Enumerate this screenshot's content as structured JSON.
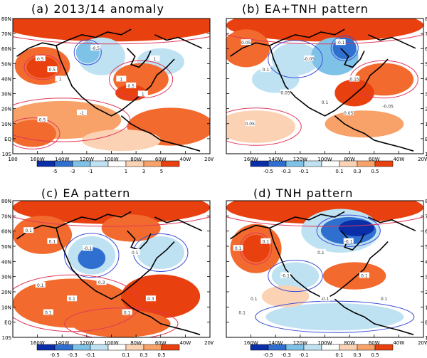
{
  "figure": {
    "panels": [
      {
        "title": "(a) 2013/14 anomaly",
        "lat_labels": [
          "80N",
          "70N",
          "60N",
          "50N",
          "40N",
          "30N",
          "20N",
          "10N",
          "EQ",
          "10S"
        ],
        "lon_labels": [
          "180",
          "160W",
          "140W",
          "120W",
          "100W",
          "80W",
          "60W",
          "40W",
          "20W"
        ],
        "colorbar_labels": [
          "-5",
          "-3",
          "-1",
          "1",
          "3",
          "5"
        ],
        "contour_labels": [
          "0.5",
          "0.5",
          "1",
          "1",
          "-0.5",
          "0.5",
          "1",
          "-1",
          "0.5",
          "1"
        ]
      },
      {
        "title": "(b) EA+TNH pattern",
        "lat_labels": [
          "80N",
          "70N",
          "60N",
          "50N",
          "40N",
          "30N",
          "20N",
          "10N",
          "EQ",
          "10S"
        ],
        "lon_labels": [
          "160W",
          "140W",
          "120W",
          "100W",
          "80W",
          "60W",
          "40W",
          "20W"
        ],
        "colorbar_labels": [
          "-0.5",
          "-0.3",
          "-0.1",
          "0.1",
          "0.3",
          "0.5"
        ],
        "contour_labels": [
          "0.05",
          "0.1",
          "0.15",
          "-0.05",
          "-0.1",
          "0.05",
          "0.05",
          "-0.05",
          "0.05",
          "0.1"
        ]
      },
      {
        "title": "(c) EA pattern",
        "lat_labels": [
          "80N",
          "70N",
          "60N",
          "50N",
          "40N",
          "30N",
          "20N",
          "10N",
          "EQ",
          "10S"
        ],
        "lon_labels": [
          "160W",
          "140W",
          "120W",
          "100W",
          "80W",
          "60W",
          "40W",
          "20W"
        ],
        "colorbar_labels": [
          "-0.5",
          "-0.3",
          "-0.1",
          "0.1",
          "0.3",
          "0.5"
        ],
        "contour_labels": [
          "0.1",
          "0.1",
          "-0.1",
          "0.1",
          "0.3",
          "0.1",
          "0.1",
          "0.3",
          "0.1",
          "0.1"
        ]
      },
      {
        "title": "(d) TNH pattern",
        "lat_labels": [
          "80N",
          "70N",
          "60N",
          "50N",
          "40N",
          "30N",
          "20N",
          "10N",
          "EQ",
          "10S"
        ],
        "lon_labels": [
          "160W",
          "140W",
          "120W",
          "100W",
          "80W",
          "60W",
          "40W",
          "20W"
        ],
        "colorbar_labels": [
          "-0.5",
          "-0.3",
          "-0.1",
          "0.1",
          "0.3",
          "0.5"
        ],
        "contour_labels": [
          "0.1",
          "0.1",
          "0.1",
          "-0.1",
          "0.1",
          "-0.1",
          "-0.1",
          "0.1",
          "0.1",
          "0.1"
        ]
      }
    ],
    "colors": {
      "deep_red": "#e8400f",
      "red": "#f26a2e",
      "orange": "#f8a26a",
      "light_orange": "#fcd2b4",
      "white": "#ffffff",
      "light_blue": "#bfe2f3",
      "blue": "#7fc2e8",
      "mid_blue": "#2f6fd0",
      "deep_blue": "#0a2ea8",
      "contour_red": "#e0395a",
      "contour_blue": "#3a4fd8",
      "land": "#000000"
    },
    "colorbar_colors": [
      "#0a2ea8",
      "#2f6fd0",
      "#7fc2e8",
      "#bfe2f3",
      "#ffffff",
      "#fcd2b4",
      "#f8a26a",
      "#e8400f"
    ]
  }
}
